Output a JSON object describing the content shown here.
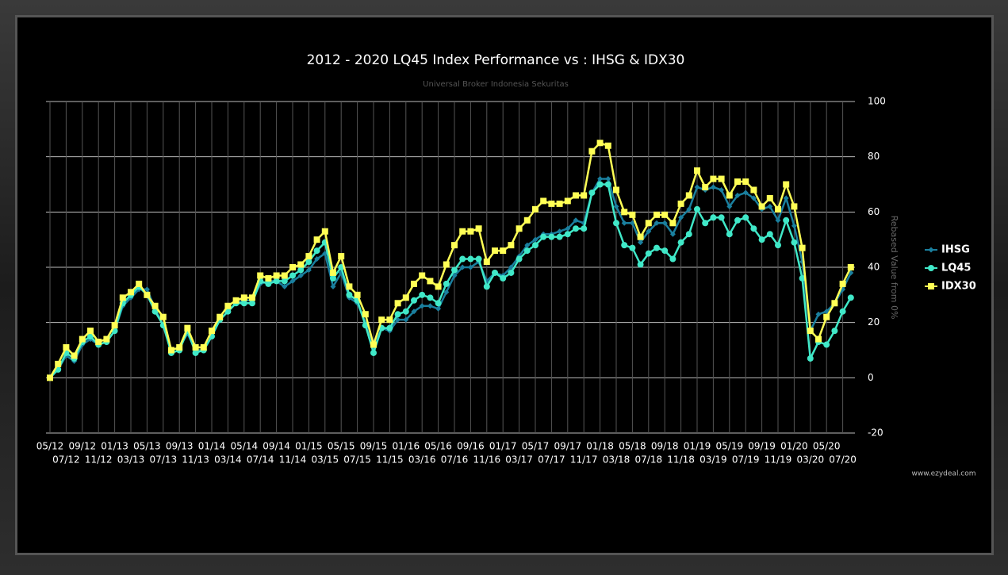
{
  "chart_data": {
    "type": "line",
    "title": "2012 - 2020 LQ45 Index Performance vs : IHSG & IDX30",
    "subtitle": "Universal Broker Indonesia Sekuritas",
    "y_label": "Rebased Value from 0%",
    "watermark": "www.ezydeal.com",
    "ylim": [
      -20,
      100
    ],
    "yticks": [
      -20,
      0,
      20,
      40,
      60,
      80,
      100
    ],
    "grid": true,
    "categories": [
      "05/12",
      null,
      "07/12",
      null,
      "09/12",
      null,
      "11/12",
      null,
      "01/13",
      null,
      "03/13",
      null,
      "05/13",
      null,
      "07/13",
      null,
      "09/13",
      null,
      "11/13",
      null,
      "01/14",
      null,
      "03/14",
      null,
      "05/14",
      null,
      "07/14",
      null,
      "09/14",
      null,
      "11/14",
      null,
      "01/15",
      null,
      "03/15",
      null,
      "05/15",
      null,
      "07/15",
      null,
      "09/15",
      null,
      "11/15",
      null,
      "01/16",
      null,
      "03/16",
      null,
      "05/16",
      null,
      "07/16",
      null,
      "09/16",
      null,
      "11/16",
      null,
      "01/17",
      null,
      "03/17",
      null,
      "05/17",
      null,
      "07/17",
      null,
      "09/17",
      null,
      "11/17",
      null,
      "01/18",
      null,
      "03/18",
      null,
      "05/18",
      null,
      "07/18",
      null,
      "09/18",
      null,
      "11/18",
      null,
      "01/19",
      null,
      "03/19",
      null,
      "05/19",
      null,
      "07/19",
      null,
      "09/19",
      null,
      "11/19",
      null,
      "01/20",
      null,
      "03/20",
      null,
      "05/20",
      null,
      "07/20",
      null
    ],
    "series": [
      {
        "name": "IHSG",
        "color": "#1a7f9e",
        "marker": "diamond",
        "values": [
          0,
          3,
          8,
          6,
          12,
          14,
          12,
          13,
          17,
          26,
          29,
          32,
          32,
          25,
          19,
          10,
          11,
          16,
          10,
          10,
          15,
          21,
          24,
          27,
          28,
          28,
          34,
          35,
          35,
          33,
          35,
          37,
          39,
          43,
          45,
          33,
          38,
          29,
          27,
          20,
          11,
          18,
          17,
          21,
          21,
          24,
          26,
          26,
          25,
          31,
          37,
          40,
          40,
          42,
          35,
          38,
          37,
          40,
          44,
          48,
          50,
          52,
          52,
          53,
          54,
          57,
          56,
          67,
          72,
          72,
          62,
          56,
          56,
          49,
          53,
          56,
          56,
          52,
          58,
          61,
          69,
          68,
          69,
          68,
          62,
          66,
          67,
          65,
          61,
          62,
          57,
          65,
          55,
          42,
          17,
          23,
          24,
          27,
          32,
          38
        ]
      },
      {
        "name": "LQ45",
        "color": "#40e8c8",
        "marker": "circle",
        "values": [
          0,
          3,
          9,
          7,
          13,
          15,
          12,
          13,
          17,
          27,
          30,
          33,
          30,
          24,
          19,
          9,
          10,
          17,
          9,
          10,
          15,
          21,
          24,
          27,
          27,
          27,
          35,
          34,
          35,
          35,
          37,
          39,
          42,
          46,
          49,
          36,
          40,
          30,
          28,
          19,
          9,
          18,
          18,
          23,
          24,
          28,
          30,
          29,
          27,
          34,
          39,
          43,
          43,
          43,
          33,
          38,
          36,
          38,
          43,
          46,
          48,
          51,
          51,
          51,
          52,
          54,
          54,
          67,
          70,
          70,
          56,
          48,
          47,
          41,
          45,
          47,
          46,
          43,
          49,
          52,
          61,
          56,
          58,
          58,
          52,
          57,
          58,
          54,
          50,
          52,
          48,
          57,
          49,
          36,
          7,
          13,
          12,
          17,
          24,
          29
        ]
      },
      {
        "name": "IDX30",
        "color": "#ffff55",
        "marker": "square",
        "values": [
          0,
          5,
          11,
          8,
          14,
          17,
          13,
          14,
          19,
          29,
          31,
          34,
          30,
          26,
          22,
          10,
          11,
          18,
          11,
          11,
          17,
          22,
          26,
          28,
          29,
          29,
          37,
          36,
          37,
          37,
          40,
          41,
          44,
          50,
          53,
          38,
          44,
          33,
          30,
          23,
          12,
          21,
          21,
          27,
          29,
          34,
          37,
          35,
          33,
          41,
          48,
          53,
          53,
          54,
          42,
          46,
          46,
          48,
          54,
          57,
          61,
          64,
          63,
          63,
          64,
          66,
          66,
          82,
          85,
          84,
          68,
          60,
          59,
          51,
          56,
          59,
          59,
          56,
          63,
          66,
          75,
          69,
          72,
          72,
          66,
          71,
          71,
          68,
          62,
          65,
          61,
          70,
          62,
          47,
          17,
          14,
          22,
          27,
          34,
          40
        ]
      }
    ],
    "legend": "right"
  }
}
